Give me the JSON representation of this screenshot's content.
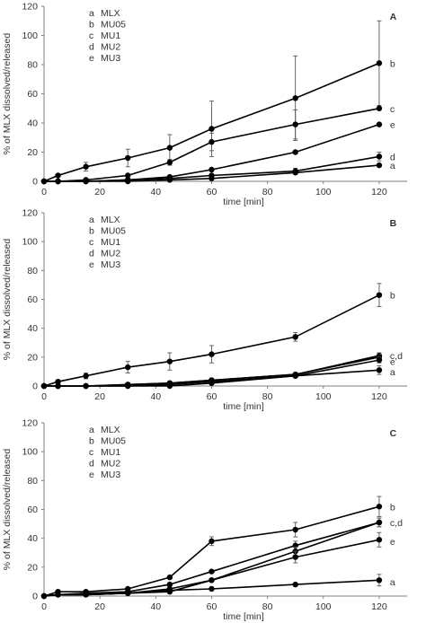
{
  "chart_data": [
    {
      "type": "line",
      "panel_label": "A",
      "xlabel": "time [min]",
      "ylabel": "% of MLX dissolved/released",
      "xlim": [
        0,
        130
      ],
      "ylim": [
        0,
        120
      ],
      "x_ticks": [
        0,
        20,
        40,
        60,
        80,
        100,
        120
      ],
      "y_ticks": [
        0,
        20,
        40,
        60,
        80,
        100,
        120
      ],
      "grid": false,
      "legend": [
        {
          "letter": "a",
          "name": "MLX"
        },
        {
          "letter": "b",
          "name": "MU05"
        },
        {
          "letter": "c",
          "name": "MU1"
        },
        {
          "letter": "d",
          "name": "MU2"
        },
        {
          "letter": "e",
          "name": "MU3"
        }
      ],
      "series": [
        {
          "letter": "b",
          "x": [
            0,
            5,
            15,
            30,
            45,
            60,
            90,
            120
          ],
          "values": [
            0,
            4,
            10,
            16,
            23,
            36,
            57,
            81
          ],
          "errors": [
            0,
            0,
            3,
            6,
            9,
            19,
            29,
            29
          ]
        },
        {
          "letter": "c",
          "x": [
            0,
            5,
            15,
            30,
            45,
            60,
            90,
            120
          ],
          "values": [
            0,
            0,
            1,
            4,
            13,
            27,
            39,
            50
          ],
          "errors": [
            0,
            0,
            0,
            0,
            2,
            6,
            10,
            0
          ]
        },
        {
          "letter": "e",
          "x": [
            0,
            5,
            15,
            30,
            45,
            60,
            90,
            120
          ],
          "values": [
            0,
            0,
            0,
            1,
            3,
            8,
            20,
            39
          ],
          "errors": [
            0,
            0,
            0,
            0,
            0,
            0,
            0,
            0
          ]
        },
        {
          "letter": "d",
          "x": [
            0,
            5,
            15,
            30,
            45,
            60,
            90,
            120
          ],
          "values": [
            0,
            0,
            0,
            1,
            2,
            4,
            7,
            17
          ],
          "errors": [
            0,
            0,
            0,
            0,
            0,
            1,
            2,
            3
          ]
        },
        {
          "letter": "a",
          "x": [
            0,
            5,
            15,
            30,
            45,
            60,
            90,
            120
          ],
          "values": [
            0,
            0,
            0,
            0,
            1,
            2,
            6,
            11
          ],
          "errors": [
            0,
            0,
            0,
            0,
            0,
            0,
            0,
            0
          ]
        }
      ],
      "end_labels": [
        {
          "text": "b",
          "y": 81
        },
        {
          "text": "c",
          "y": 50
        },
        {
          "text": "e",
          "y": 39
        },
        {
          "text": "d",
          "y": 17
        },
        {
          "text": "a",
          "y": 11
        }
      ]
    },
    {
      "type": "line",
      "panel_label": "B",
      "xlabel": "time [min]",
      "ylabel": "% of MLX dissolved/released",
      "xlim": [
        0,
        130
      ],
      "ylim": [
        0,
        120
      ],
      "x_ticks": [
        0,
        20,
        40,
        60,
        80,
        100,
        120
      ],
      "y_ticks": [
        0,
        20,
        40,
        60,
        80,
        100,
        120
      ],
      "grid": false,
      "legend": [
        {
          "letter": "a",
          "name": "MLX"
        },
        {
          "letter": "b",
          "name": "MU05"
        },
        {
          "letter": "c",
          "name": "MU1"
        },
        {
          "letter": "d",
          "name": "MU2"
        },
        {
          "letter": "e",
          "name": "MU3"
        }
      ],
      "series": [
        {
          "letter": "b",
          "x": [
            0,
            5,
            15,
            30,
            45,
            60,
            90,
            120
          ],
          "values": [
            0,
            3,
            7,
            13,
            17,
            22,
            34,
            63
          ],
          "errors": [
            0,
            0,
            2,
            4,
            6,
            6,
            3,
            8
          ]
        },
        {
          "letter": "c",
          "x": [
            0,
            5,
            15,
            30,
            45,
            60,
            90,
            120
          ],
          "values": [
            0,
            0,
            0,
            1,
            2,
            4,
            8,
            21
          ],
          "errors": [
            0,
            0,
            0,
            0,
            0,
            0,
            1,
            2
          ]
        },
        {
          "letter": "d",
          "x": [
            0,
            5,
            15,
            30,
            45,
            60,
            90,
            120
          ],
          "values": [
            0,
            0,
            0,
            1,
            2,
            4,
            8,
            20
          ],
          "errors": [
            0,
            0,
            0,
            0,
            0,
            0,
            1,
            2
          ]
        },
        {
          "letter": "e",
          "x": [
            0,
            5,
            15,
            30,
            45,
            60,
            90,
            120
          ],
          "values": [
            0,
            0,
            0,
            0,
            1,
            3,
            7,
            18
          ],
          "errors": [
            0,
            0,
            0,
            0,
            0,
            0,
            1,
            2
          ]
        },
        {
          "letter": "a",
          "x": [
            0,
            5,
            15,
            30,
            45,
            60,
            90,
            120
          ],
          "values": [
            0,
            0,
            0,
            0,
            0,
            2,
            7,
            11
          ],
          "errors": [
            0,
            0,
            0,
            0,
            0,
            0,
            0,
            3
          ]
        }
      ],
      "end_labels": [
        {
          "text": "b",
          "y": 63
        },
        {
          "text": "c,d",
          "y": 21
        },
        {
          "text": "e",
          "y": 17
        },
        {
          "text": "a",
          "y": 10
        }
      ]
    },
    {
      "type": "line",
      "panel_label": "C",
      "xlabel": "time [min]",
      "ylabel": "% of MLX dissolved/released",
      "xlim": [
        0,
        130
      ],
      "ylim": [
        0,
        120
      ],
      "x_ticks": [
        0,
        20,
        40,
        60,
        80,
        100,
        120
      ],
      "y_ticks": [
        0,
        20,
        40,
        60,
        80,
        100,
        120
      ],
      "grid": false,
      "legend": [
        {
          "letter": "a",
          "name": "MLX"
        },
        {
          "letter": "b",
          "name": "MU05"
        },
        {
          "letter": "c",
          "name": "MU1"
        },
        {
          "letter": "d",
          "name": "MU2"
        },
        {
          "letter": "e",
          "name": "MU3"
        }
      ],
      "series": [
        {
          "letter": "b",
          "x": [
            0,
            5,
            15,
            30,
            45,
            60,
            90,
            120
          ],
          "values": [
            0,
            3,
            3,
            5,
            13,
            38,
            46,
            62
          ],
          "errors": [
            0,
            0,
            0,
            0,
            0,
            3,
            5,
            7
          ]
        },
        {
          "letter": "c",
          "x": [
            0,
            5,
            15,
            30,
            45,
            60,
            90,
            120
          ],
          "values": [
            0,
            1,
            2,
            3,
            8,
            17,
            35,
            51
          ],
          "errors": [
            0,
            0,
            0,
            0,
            0,
            0,
            3,
            3
          ]
        },
        {
          "letter": "d",
          "x": [
            0,
            5,
            15,
            30,
            45,
            60,
            90,
            120
          ],
          "values": [
            0,
            1,
            1,
            2,
            5,
            11,
            31,
            51
          ],
          "errors": [
            0,
            0,
            0,
            0,
            0,
            0,
            3,
            3
          ]
        },
        {
          "letter": "e",
          "x": [
            0,
            5,
            15,
            30,
            45,
            60,
            90,
            120
          ],
          "values": [
            0,
            1,
            1,
            2,
            3,
            11,
            27,
            39
          ],
          "errors": [
            0,
            0,
            0,
            0,
            0,
            0,
            4,
            5
          ]
        },
        {
          "letter": "a",
          "x": [
            0,
            5,
            15,
            30,
            45,
            60,
            90,
            120
          ],
          "values": [
            0,
            1,
            1,
            2,
            4,
            5,
            8,
            11
          ],
          "errors": [
            0,
            0,
            0,
            0,
            0,
            0,
            0,
            4
          ]
        }
      ],
      "end_labels": [
        {
          "text": "b",
          "y": 62
        },
        {
          "text": "c,d",
          "y": 51
        },
        {
          "text": "e",
          "y": 38
        },
        {
          "text": "a",
          "y": 10
        }
      ]
    }
  ]
}
